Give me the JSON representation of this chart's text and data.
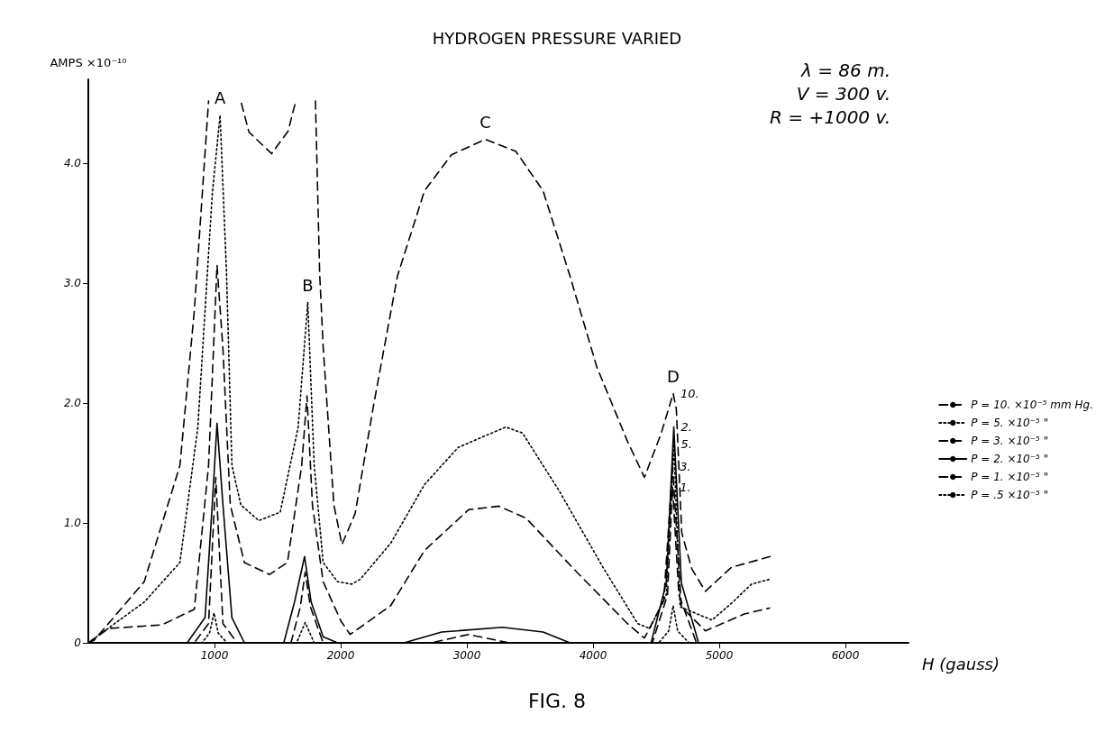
{
  "chart_data": {
    "type": "line",
    "title": "HYDROGEN PRESSURE VARIED",
    "xlabel": "H (gauss)",
    "ylabel": "AMPS ×10⁻¹⁰",
    "xlim": [
      0,
      6500
    ],
    "xticks": [
      1000,
      2000,
      3000,
      4000,
      5000,
      6000
    ],
    "ylim": [
      0,
      4.7
    ],
    "yticks": [
      {
        "value": 0,
        "label": "0"
      },
      {
        "value": 1,
        "label": "1.0"
      },
      {
        "value": 2,
        "label": "2.0"
      },
      {
        "value": 3,
        "label": "3.0"
      },
      {
        "value": 4,
        "label": "4.0"
      }
    ],
    "grid": false,
    "legend": "right",
    "series": [
      {
        "name": "P = 10. ×10⁻⁵ mm Hg.",
        "color": "#000000",
        "line_style": "dashed",
        "x": [
          0,
          45,
          443,
          726,
          840,
          953,
          1100,
          1213,
          1273,
          1453,
          1584,
          1644,
          1720,
          1800,
          1833,
          1862,
          1946,
          2010,
          2115,
          2262,
          2450,
          2664,
          2877,
          3147,
          3388,
          3604,
          3817,
          4030,
          4273,
          4407,
          4541,
          4635,
          4660,
          4703,
          4781,
          4890,
          5097,
          5337,
          5405
        ],
        "values": [
          0,
          0.02,
          0.51,
          1.48,
          2.77,
          4.52,
          null,
          4.5,
          4.26,
          4.08,
          4.27,
          4.52,
          null,
          4.52,
          3.09,
          2.45,
          1.15,
          0.82,
          1.08,
          1.99,
          3.06,
          3.77,
          4.07,
          4.2,
          4.1,
          3.77,
          3.06,
          2.3,
          1.68,
          1.38,
          1.75,
          2.08,
          1.95,
          0.92,
          0.62,
          0.43,
          0.63,
          0.7,
          0.72
        ]
      },
      {
        "name": "P = 5. ×10⁻⁵ \"",
        "color": "#000000",
        "line_style": "dotted",
        "x": [
          0,
          443,
          726,
          868,
          982,
          1044,
          1095,
          1138,
          1209,
          1351,
          1521,
          1663,
          1739,
          1790,
          1861,
          1975,
          2088,
          2155,
          2396,
          2664,
          2931,
          3308,
          3441,
          3736,
          4084,
          4354,
          4450,
          4580,
          4640,
          4690,
          4943,
          5097,
          5256,
          5398
        ],
        "values": [
          0,
          0.34,
          0.67,
          1.8,
          3.74,
          4.4,
          3.09,
          1.48,
          1.15,
          1.02,
          1.09,
          1.8,
          2.84,
          1.48,
          0.67,
          0.51,
          0.49,
          0.53,
          0.83,
          1.32,
          1.63,
          1.8,
          1.75,
          1.26,
          0.62,
          0.16,
          0.12,
          0.4,
          1.66,
          0.3,
          0.19,
          0.33,
          0.49,
          0.53
        ]
      },
      {
        "name": "P = 3. ×10⁻⁵ \"",
        "color": "#000000",
        "line_style": "dashed",
        "x": [
          0,
          159,
          584,
          840,
          953,
          1020,
          1067,
          1125,
          1237,
          1436,
          1578,
          1691,
          1733,
          1776,
          1861,
          2003,
          2075,
          2396,
          2664,
          3013,
          3254,
          3469,
          3871,
          4273,
          4407,
          4560,
          4630,
          4700,
          4890,
          5198,
          5398
        ],
        "values": [
          0,
          0.12,
          0.15,
          0.28,
          1.48,
          3.15,
          2.45,
          1.15,
          0.67,
          0.57,
          0.67,
          1.48,
          2.06,
          1.15,
          0.51,
          0.18,
          0.07,
          0.31,
          0.77,
          1.11,
          1.14,
          1.04,
          0.59,
          0.16,
          0.04,
          0.35,
          1.47,
          0.3,
          0.1,
          0.24,
          0.29
        ]
      },
      {
        "name": "P = 2. ×10⁻⁵ \"",
        "color": "#000000",
        "line_style": "solid",
        "x": [
          0,
          783,
          925,
          982,
          1020,
          1067,
          1138,
          1237,
          1549,
          1634,
          1714,
          1766,
          1861,
          1975,
          2503,
          2800,
          3281,
          3604,
          3817,
          4460,
          4580,
          4640,
          4700,
          4836,
          5286
        ],
        "values": [
          0,
          0,
          0.21,
          1.15,
          1.83,
          1.15,
          0.21,
          0,
          0,
          0.34,
          0.72,
          0.34,
          0.05,
          0,
          0,
          0.09,
          0.13,
          0.09,
          0,
          0,
          0.5,
          1.8,
          0.5,
          0,
          0
        ]
      },
      {
        "name": "P = 1. ×10⁻⁵ \"",
        "color": "#000000",
        "line_style": "dashed",
        "x": [
          0,
          840,
          953,
          1010,
          1067,
          1180,
          1606,
          1680,
          1719,
          1760,
          1861,
          2718,
          3013,
          3333,
          4470,
          4590,
          4630,
          4680,
          4820,
          5387
        ],
        "values": [
          0,
          0,
          0.16,
          1.38,
          0.16,
          0,
          0,
          0.3,
          0.59,
          0.3,
          0,
          0,
          0.07,
          0,
          0,
          0.4,
          1.3,
          0.4,
          0,
          0
        ]
      },
      {
        "name": "P = .5 ×10⁻⁵ \"",
        "color": "#000000",
        "line_style": "dotted",
        "x": [
          0,
          900,
          960,
          996,
          1030,
          1100,
          1650,
          1719,
          1790,
          4520,
          4600,
          4635,
          4670,
          4760,
          5517
        ],
        "values": [
          0,
          0,
          0.08,
          0.25,
          0.08,
          0,
          0,
          0.17,
          0,
          0,
          0.1,
          0.31,
          0.1,
          0,
          0
        ]
      }
    ],
    "annotations": [
      {
        "text": "A",
        "x": 1044,
        "y": 4.4
      },
      {
        "text": "B",
        "x": 1739,
        "y": 2.84
      },
      {
        "text": "C",
        "x": 3147,
        "y": 4.2
      },
      {
        "text": "D",
        "x": 4635,
        "y": 2.08
      },
      {
        "text": "10.",
        "x": 4635,
        "y": 2.08
      },
      {
        "text": "2.",
        "x": 4640,
        "y": 1.8
      },
      {
        "text": "5.",
        "x": 4640,
        "y": 1.66
      },
      {
        "text": "3.",
        "x": 4630,
        "y": 1.47
      },
      {
        "text": "1.",
        "x": 4630,
        "y": 1.3
      },
      "λ = 86 m.",
      "V = 300 v.",
      "R = +1000 v.",
      "FIG. 8"
    ]
  }
}
